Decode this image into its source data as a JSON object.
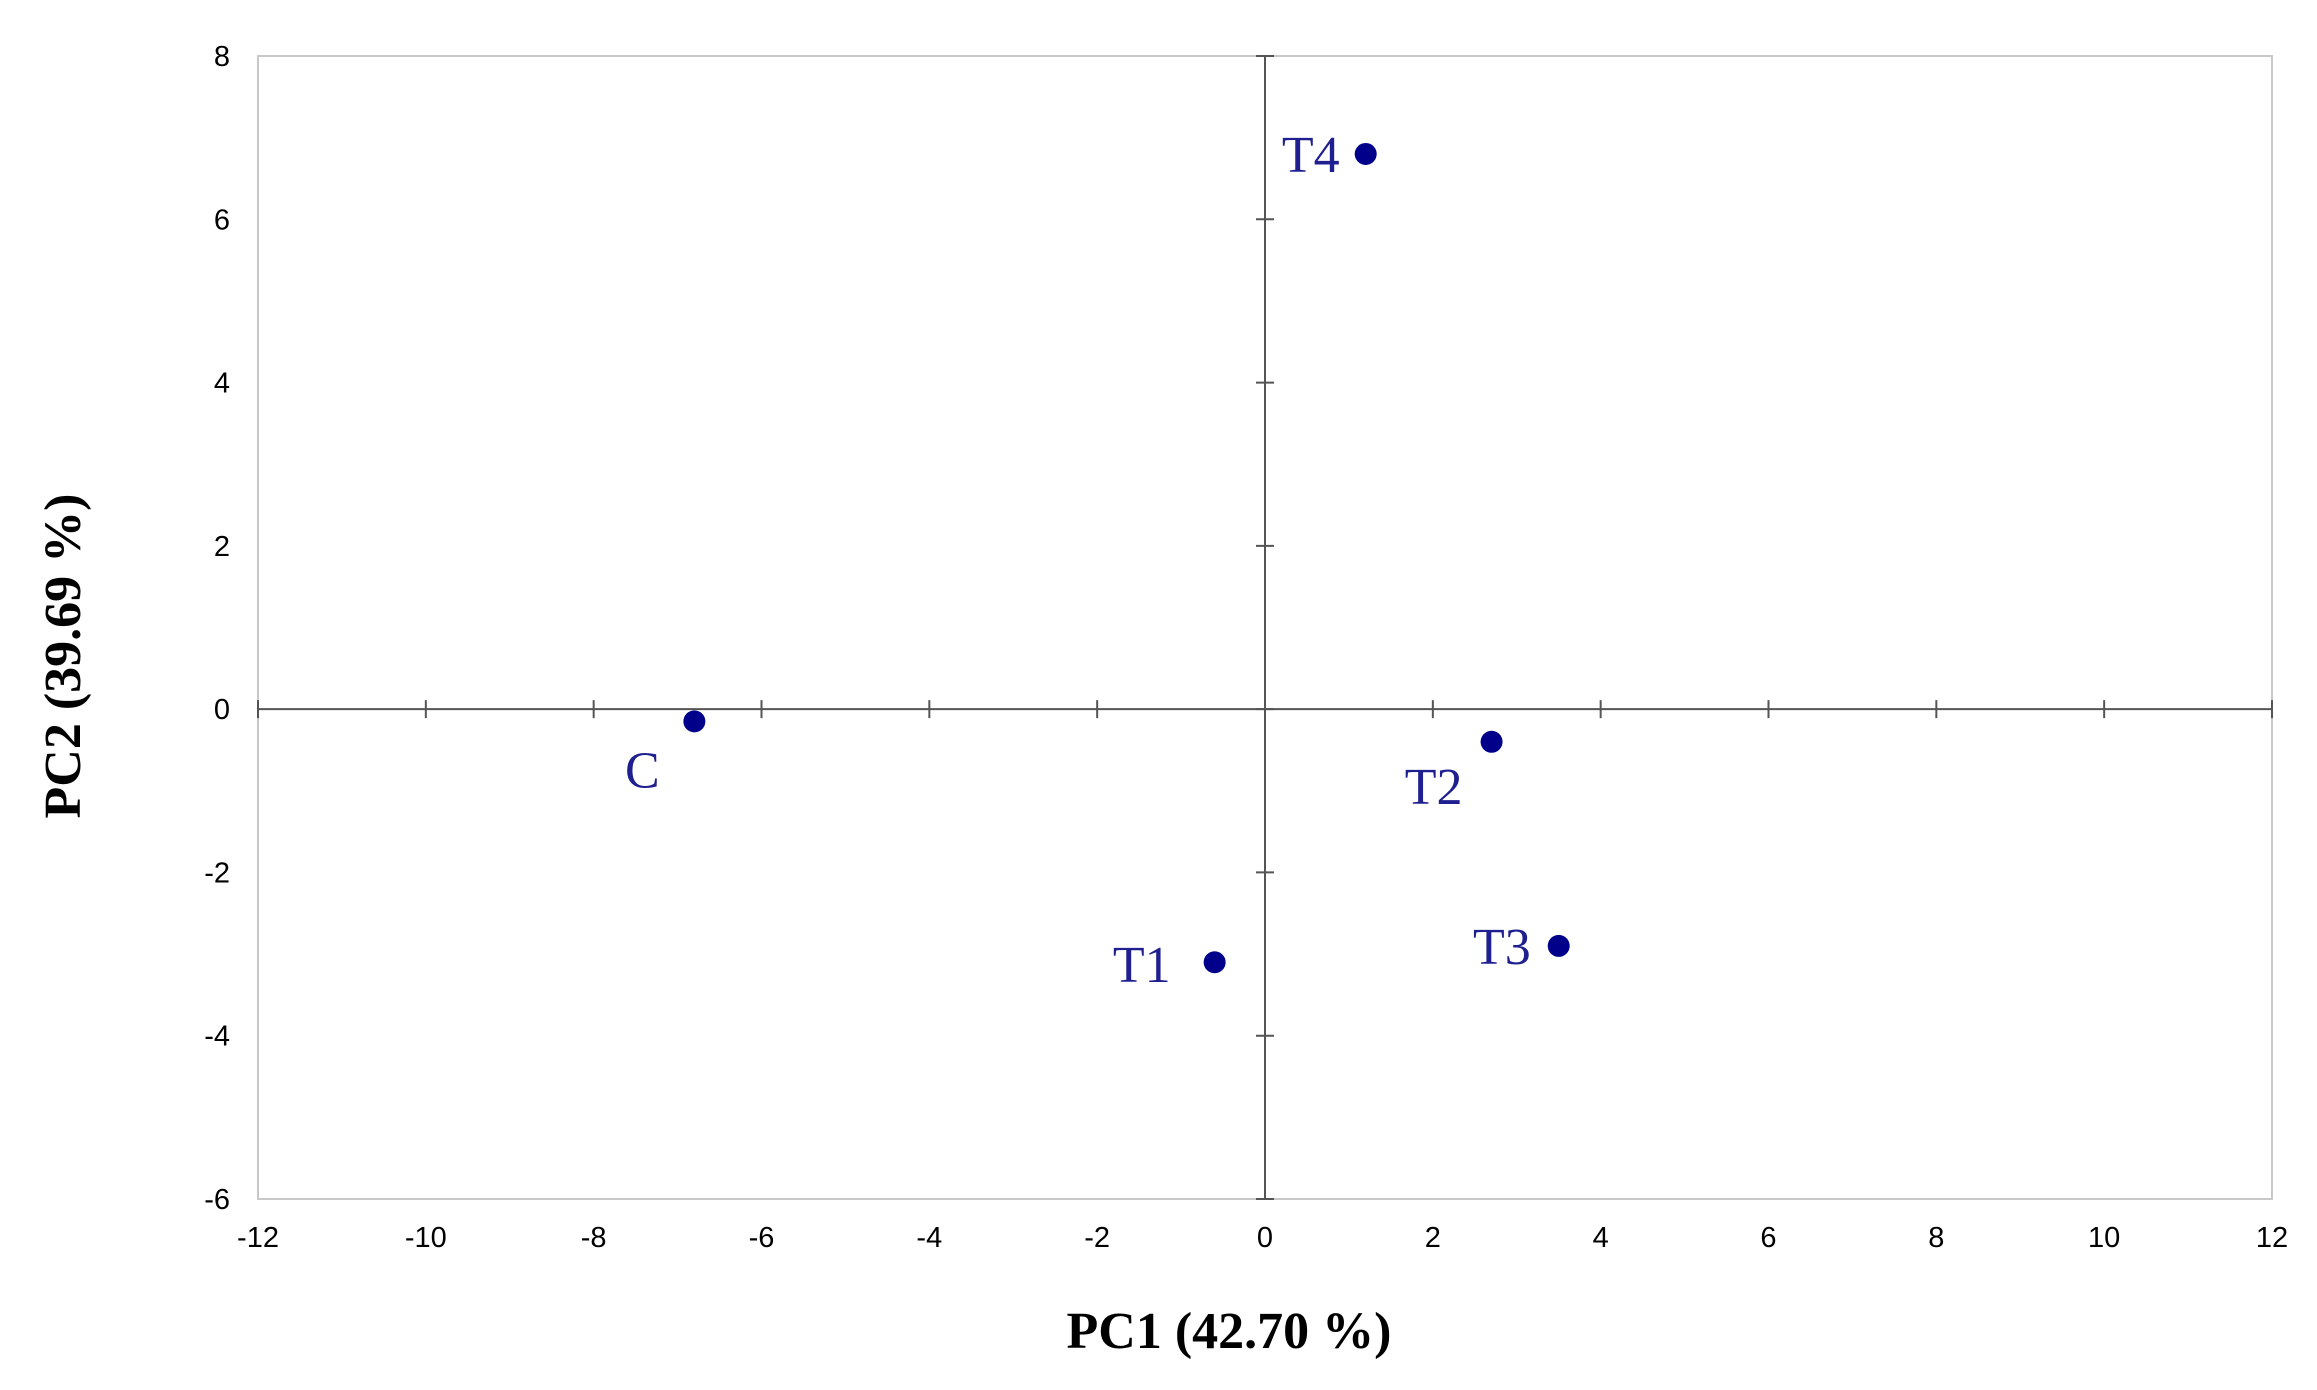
{
  "chart_data": {
    "type": "scatter",
    "xlabel": "PC1 (42.70 %)",
    "ylabel": "PC2 (39.69 %)",
    "xlim": [
      -12,
      12
    ],
    "ylim": [
      -6,
      8
    ],
    "x_ticks": [
      -12,
      -10,
      -8,
      -6,
      -4,
      -2,
      0,
      2,
      4,
      6,
      8,
      10,
      12
    ],
    "y_ticks": [
      -6,
      -4,
      -2,
      0,
      2,
      4,
      6,
      8
    ],
    "grid": false,
    "point_color": "#00008B",
    "label_color": "#1F1F8F",
    "points": [
      {
        "label": "C",
        "x": -6.8,
        "y": -0.15
      },
      {
        "label": "T1",
        "x": -0.6,
        "y": -3.1
      },
      {
        "label": "T2",
        "x": 2.7,
        "y": -0.4
      },
      {
        "label": "T3",
        "x": 3.5,
        "y": -2.9
      },
      {
        "label": "T4",
        "x": 1.2,
        "y": 6.8
      }
    ]
  }
}
